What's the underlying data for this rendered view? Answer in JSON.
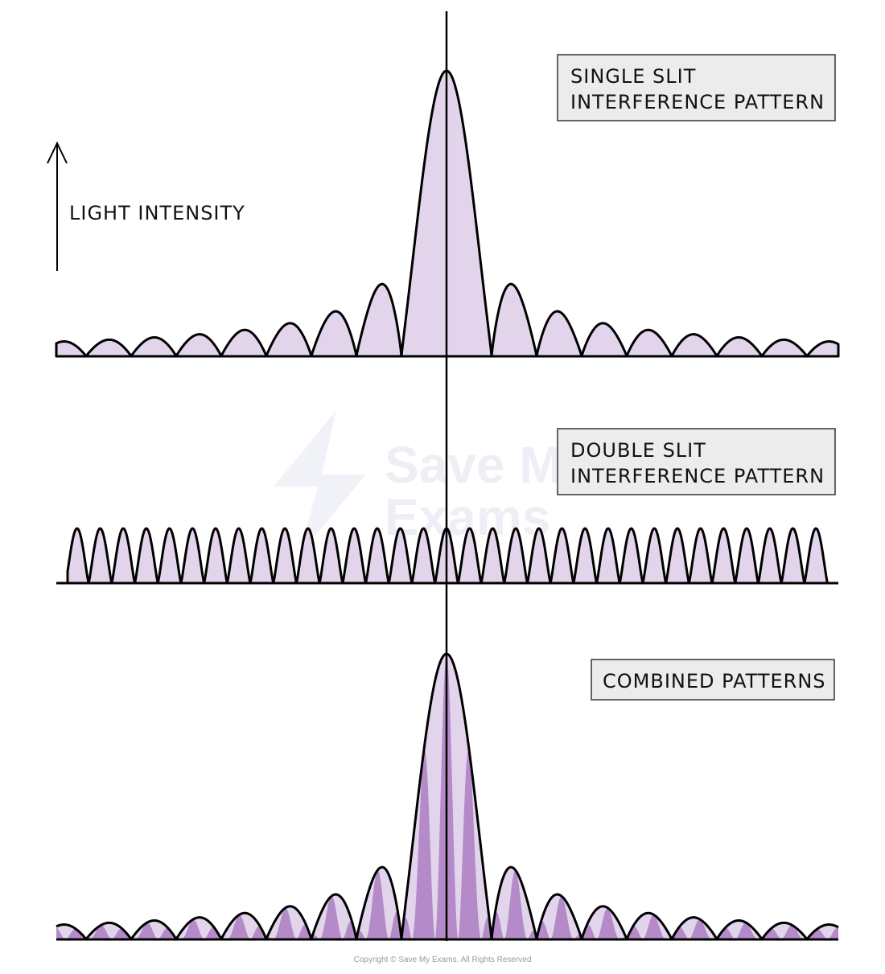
{
  "labels": {
    "single_slit_line1": "SINGLE  SLIT",
    "single_slit_line2": "INTERFERENCE  PATTERN",
    "double_slit_line1": "DOUBLE  SLIT",
    "double_slit_line2": "INTERFERENCE  PATTERN",
    "combined": "COMBINED  PATTERNS",
    "axis": "LIGHT  INTENSITY"
  },
  "watermark": {
    "line1": "Save My",
    "line2": "Exams"
  },
  "copyright": "Copyright © Save My Exams. All Rights Reserved",
  "colors": {
    "envelope_fill": "#e2d4ea",
    "fringe_fill": "#b48ac8",
    "stroke": "#000000",
    "label_box": "#ececec"
  }
}
